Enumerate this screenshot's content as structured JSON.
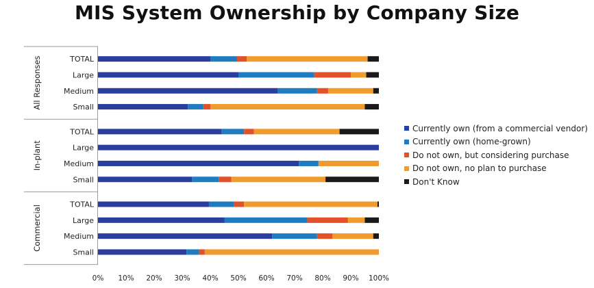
{
  "chart_data": {
    "type": "bar",
    "orientation": "horizontal",
    "stacked": true,
    "title": "MIS System Ownership by Company Size",
    "xlim": [
      0,
      100
    ],
    "x_ticks": [
      "0%",
      "10%",
      "20%",
      "30%",
      "40%",
      "50%",
      "60%",
      "70%",
      "80%",
      "90%",
      "100%"
    ],
    "grid": false,
    "legend_position": "right",
    "series": [
      {
        "name": "Currently own (from a commercial vendor)",
        "color": "#2a3f9d"
      },
      {
        "name": "Currently own (home-grown)",
        "color": "#1f7cc0"
      },
      {
        "name": "Do not own, but considering purchase",
        "color": "#e2512a"
      },
      {
        "name": "Do not own, no plan to purchase",
        "color": "#ef9b2e"
      },
      {
        "name": "Don't Know",
        "color": "#1a1a1a"
      }
    ],
    "groups": [
      {
        "name": "All Responses",
        "rows": [
          {
            "category": "TOTAL",
            "values": [
              40,
              9.5,
              3.5,
              43,
              4
            ]
          },
          {
            "category": "Large",
            "values": [
              50,
              27,
              13,
              5.5,
              4.5
            ]
          },
          {
            "category": "Medium",
            "values": [
              64,
              14,
              4,
              16,
              2
            ]
          },
          {
            "category": "Small",
            "values": [
              32,
              5.5,
              2.5,
              55,
              5
            ]
          }
        ]
      },
      {
        "name": "In-plant",
        "rows": [
          {
            "category": "TOTAL",
            "values": [
              44,
              8,
              3.5,
              30.5,
              14
            ]
          },
          {
            "category": "Large",
            "values": [
              100,
              0,
              0,
              0,
              0
            ]
          },
          {
            "category": "Medium",
            "values": [
              71.5,
              7,
              0,
              21.5,
              0
            ]
          },
          {
            "category": "Small",
            "values": [
              33.5,
              9.5,
              4.5,
              33.5,
              19
            ]
          }
        ]
      },
      {
        "name": "Commercial",
        "rows": [
          {
            "category": "TOTAL",
            "values": [
              39.5,
              9,
              3.5,
              47.5,
              0.5
            ]
          },
          {
            "category": "Large",
            "values": [
              45,
              29.5,
              14.5,
              6,
              5
            ]
          },
          {
            "category": "Medium",
            "values": [
              62,
              16,
              5.5,
              14.5,
              2
            ]
          },
          {
            "category": "Small",
            "values": [
              31.5,
              4.5,
              2,
              62,
              0
            ]
          }
        ]
      }
    ]
  }
}
